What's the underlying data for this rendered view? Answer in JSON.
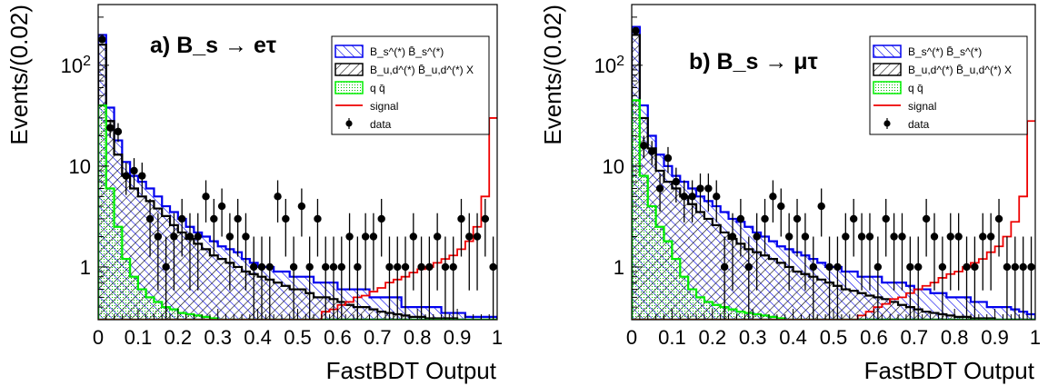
{
  "chart_data": [
    {
      "type": "histogram",
      "panel_label": "a)",
      "title": "B_s → eτ",
      "xlabel": "FastBDT Output",
      "ylabel": "Events/(0.02)",
      "xlim": [
        0,
        1
      ],
      "ylim": [
        0.3,
        400
      ],
      "yscale": "log",
      "x_ticks": [
        "0",
        "0.1",
        "0.2",
        "0.3",
        "0.4",
        "0.5",
        "0.6",
        "0.7",
        "0.8",
        "0.9",
        "1"
      ],
      "y_ticks": [
        "1",
        "10",
        "10^2"
      ],
      "bin_width": 0.02,
      "legend_position": "top-right",
      "series": [
        {
          "name": "B_s^(*) B̄_s^(*)",
          "color": "#0000ee",
          "style": "hatch-backslash",
          "values": [
            200,
            38,
            18,
            11,
            8,
            7,
            6,
            5,
            4,
            3.5,
            3.0,
            2.5,
            2.2,
            2.0,
            1.8,
            1.6,
            1.5,
            1.4,
            1.2,
            1.1,
            1.0,
            1.0,
            0.9,
            0.9,
            0.8,
            0.8,
            0.8,
            0.7,
            0.7,
            0.7,
            0.6,
            0.6,
            0.6,
            0.6,
            0.5,
            0.5,
            0.5,
            0.5,
            0.4,
            0.4,
            0.4,
            0.4,
            0.4,
            0.35,
            0.35,
            0.35,
            0.32,
            0.32,
            0.32,
            0.32
          ]
        },
        {
          "name": "B_u,d^(*) B̄_u,d^(*) X",
          "color": "#000000",
          "style": "hatch-slash",
          "values": [
            160,
            28,
            13,
            8,
            6,
            5,
            4.5,
            3.8,
            3.2,
            2.6,
            2.2,
            1.9,
            1.7,
            1.5,
            1.3,
            1.2,
            1.1,
            1.0,
            0.9,
            0.85,
            0.8,
            0.75,
            0.7,
            0.65,
            0.6,
            0.6,
            0.55,
            0.5,
            0.5,
            0.48,
            0.45,
            0.42,
            0.4,
            0.4,
            0.38,
            0.36,
            0.35,
            0.34,
            0.33,
            0.32,
            0.32,
            0.31,
            0.31,
            0.31,
            0.31,
            0.3,
            0.3,
            0.3,
            0.3,
            0.3
          ]
        },
        {
          "name": "q q̄",
          "color": "#00ee00",
          "style": "dots",
          "values": [
            40,
            6,
            2.5,
            1.2,
            0.8,
            0.6,
            0.5,
            0.45,
            0.4,
            0.38,
            0.35,
            0.34,
            0.33,
            0.32,
            0.31,
            0.3,
            0.3,
            0.3,
            0.3,
            0.3,
            0.3,
            0.3,
            0.3,
            0.3,
            0.3,
            0.3,
            0.3,
            0.3,
            0.3,
            0.3,
            0.3,
            0.3,
            0.3,
            0.3,
            0.3,
            0.3,
            0.3,
            0.3,
            0.3,
            0.3,
            0.3,
            0.3,
            0.3,
            0.3,
            0.3,
            0.3,
            0.3,
            0.3,
            0.3,
            0.3
          ]
        },
        {
          "name": "signal",
          "color": "#ee0000",
          "style": "line",
          "values": [
            0.3,
            0.3,
            0.3,
            0.3,
            0.3,
            0.3,
            0.3,
            0.3,
            0.3,
            0.3,
            0.3,
            0.3,
            0.3,
            0.3,
            0.3,
            0.3,
            0.3,
            0.3,
            0.3,
            0.3,
            0.3,
            0.3,
            0.3,
            0.3,
            0.3,
            0.3,
            0.3,
            0.3,
            0.36,
            0.38,
            0.42,
            0.45,
            0.5,
            0.52,
            0.57,
            0.62,
            0.7,
            0.75,
            0.8,
            0.88,
            0.95,
            1.0,
            1.1,
            1.2,
            1.3,
            1.5,
            1.8,
            2.5,
            5,
            30
          ]
        },
        {
          "name": "data",
          "color": "#000000",
          "style": "points",
          "x": [
            0.01,
            0.03,
            0.05,
            0.07,
            0.09,
            0.11,
            0.13,
            0.15,
            0.17,
            0.19,
            0.21,
            0.23,
            0.25,
            0.27,
            0.29,
            0.31,
            0.33,
            0.35,
            0.37,
            0.39,
            0.41,
            0.43,
            0.45,
            0.47,
            0.49,
            0.51,
            0.53,
            0.55,
            0.57,
            0.59,
            0.61,
            0.63,
            0.65,
            0.67,
            0.69,
            0.71,
            0.73,
            0.75,
            0.77,
            0.79,
            0.81,
            0.83,
            0.85,
            0.87,
            0.89,
            0.91,
            0.93,
            0.95,
            0.97,
            0.99
          ],
          "y": [
            180,
            24,
            22,
            8,
            9,
            8,
            3,
            2,
            1,
            2,
            3,
            2,
            2,
            5,
            3,
            4,
            2,
            3,
            2,
            1,
            1,
            1,
            5,
            3,
            1,
            4,
            1,
            3,
            1,
            1,
            1,
            2,
            1,
            2,
            2,
            3,
            1,
            1,
            1,
            2,
            1,
            1,
            2,
            1,
            1,
            3,
            2,
            2,
            3,
            1
          ]
        }
      ]
    },
    {
      "type": "histogram",
      "panel_label": "b)",
      "title": "B_s → μτ",
      "xlabel": "FastBDT Output",
      "ylabel": "Events/(0.02)",
      "xlim": [
        0,
        1
      ],
      "ylim": [
        0.3,
        400
      ],
      "yscale": "log",
      "x_ticks": [
        "0",
        "0.1",
        "0.2",
        "0.3",
        "0.4",
        "0.5",
        "0.6",
        "0.7",
        "0.8",
        "0.9",
        "1"
      ],
      "y_ticks": [
        "1",
        "10",
        "10^2"
      ],
      "bin_width": 0.02,
      "legend_position": "top-right",
      "series": [
        {
          "name": "B_s^(*) B̄_s^(*)",
          "color": "#0000ee",
          "style": "hatch-backslash",
          "values": [
            240,
            40,
            20,
            13,
            10,
            8,
            7,
            6,
            5,
            4.5,
            4.0,
            3.5,
            3.0,
            2.8,
            2.5,
            2.2,
            2.0,
            1.8,
            1.6,
            1.5,
            1.4,
            1.3,
            1.2,
            1.1,
            1.0,
            1.0,
            0.9,
            0.9,
            0.8,
            0.8,
            0.8,
            0.7,
            0.7,
            0.7,
            0.65,
            0.6,
            0.6,
            0.55,
            0.55,
            0.5,
            0.5,
            0.5,
            0.45,
            0.45,
            0.4,
            0.4,
            0.4,
            0.38,
            0.36,
            0.34
          ]
        },
        {
          "name": "B_u,d^(*) B̄_u,d^(*) X",
          "color": "#000000",
          "style": "hatch-slash",
          "values": [
            200,
            30,
            15,
            9,
            7,
            6,
            5,
            4.2,
            3.5,
            3.0,
            2.6,
            2.2,
            1.9,
            1.7,
            1.5,
            1.4,
            1.3,
            1.2,
            1.1,
            1.0,
            0.9,
            0.85,
            0.8,
            0.75,
            0.7,
            0.65,
            0.6,
            0.58,
            0.55,
            0.52,
            0.5,
            0.48,
            0.45,
            0.42,
            0.4,
            0.38,
            0.36,
            0.35,
            0.34,
            0.33,
            0.32,
            0.32,
            0.31,
            0.31,
            0.31,
            0.3,
            0.3,
            0.3,
            0.3,
            0.3
          ]
        },
        {
          "name": "q q̄",
          "color": "#00ee00",
          "style": "dots",
          "values": [
            45,
            8,
            4,
            2.5,
            1.8,
            1.2,
            0.8,
            0.6,
            0.5,
            0.45,
            0.42,
            0.4,
            0.38,
            0.36,
            0.35,
            0.34,
            0.33,
            0.32,
            0.31,
            0.3,
            0.3,
            0.3,
            0.3,
            0.3,
            0.3,
            0.3,
            0.3,
            0.3,
            0.3,
            0.3,
            0.3,
            0.3,
            0.3,
            0.3,
            0.3,
            0.3,
            0.3,
            0.3,
            0.3,
            0.3,
            0.3,
            0.3,
            0.3,
            0.3,
            0.3,
            0.3,
            0.3,
            0.3,
            0.3,
            0.3
          ]
        },
        {
          "name": "signal",
          "color": "#ee0000",
          "style": "line",
          "values": [
            0.3,
            0.3,
            0.3,
            0.3,
            0.3,
            0.3,
            0.3,
            0.3,
            0.3,
            0.3,
            0.3,
            0.3,
            0.3,
            0.3,
            0.3,
            0.3,
            0.3,
            0.3,
            0.3,
            0.3,
            0.3,
            0.3,
            0.3,
            0.3,
            0.3,
            0.3,
            0.3,
            0.3,
            0.33,
            0.36,
            0.4,
            0.43,
            0.48,
            0.5,
            0.55,
            0.6,
            0.65,
            0.7,
            0.78,
            0.85,
            0.9,
            1.0,
            1.1,
            1.2,
            1.4,
            1.6,
            2.0,
            2.8,
            5,
            28
          ]
        },
        {
          "name": "data",
          "color": "#000000",
          "style": "points",
          "x": [
            0.01,
            0.03,
            0.05,
            0.07,
            0.09,
            0.11,
            0.13,
            0.15,
            0.17,
            0.19,
            0.21,
            0.23,
            0.25,
            0.27,
            0.29,
            0.31,
            0.33,
            0.35,
            0.37,
            0.39,
            0.41,
            0.43,
            0.45,
            0.47,
            0.49,
            0.51,
            0.53,
            0.55,
            0.57,
            0.59,
            0.61,
            0.63,
            0.65,
            0.67,
            0.69,
            0.71,
            0.73,
            0.75,
            0.77,
            0.79,
            0.81,
            0.83,
            0.85,
            0.87,
            0.89,
            0.91,
            0.93,
            0.95,
            0.97,
            0.99
          ],
          "y": [
            220,
            16,
            14,
            6,
            12,
            7,
            5,
            5,
            6,
            6,
            5,
            1,
            2,
            3,
            1,
            2,
            3,
            5,
            4,
            2,
            3,
            2,
            1,
            4,
            1,
            1,
            2,
            3,
            2,
            2,
            1,
            3,
            2,
            2,
            1,
            1,
            3,
            2,
            1,
            2,
            2,
            1,
            1,
            2,
            2,
            3,
            1,
            1,
            1,
            1
          ]
        }
      ]
    }
  ]
}
